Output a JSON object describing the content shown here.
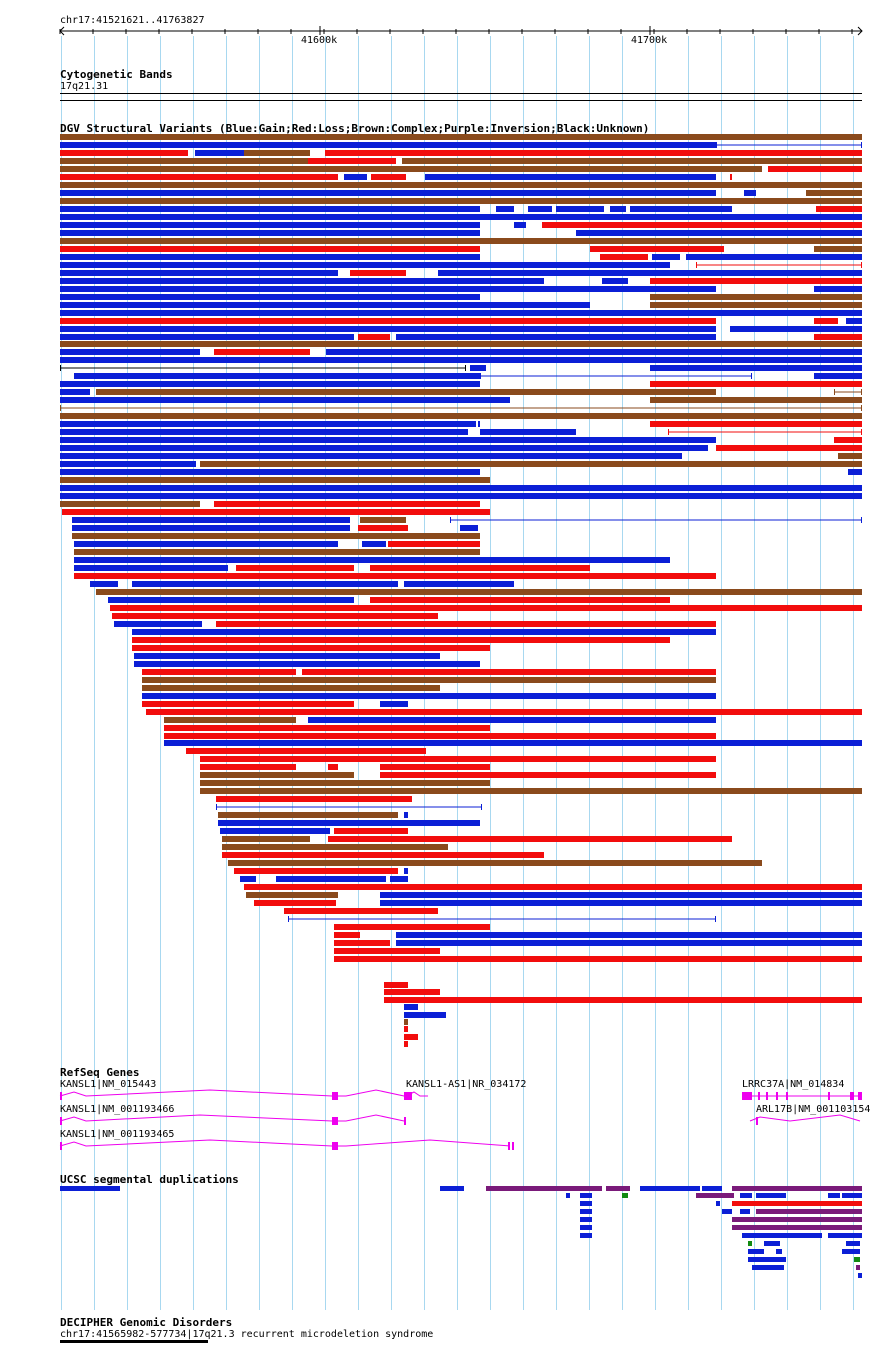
{
  "region": "chr17:41521621..41763827",
  "ruler": {
    "ticks": [
      "41600k",
      "41700k"
    ]
  },
  "colors": {
    "gain": "#0b1fd6",
    "loss": "#f20d0d",
    "complex": "#8a4a1c",
    "inversion": "#7a1a7a",
    "unknown": "#000000",
    "gene": "#ee00ee",
    "grid": "#a8d8f0",
    "green": "#128a12"
  },
  "tracks": {
    "cytoband": {
      "title": "Cytogenetic Bands",
      "band": "17q21.31"
    },
    "dgv": {
      "title": "DGV Structural Variants (Blue:Gain;Red:Loss;Brown:Complex;Purple:Inversion;Black:Unknown)",
      "variant_count": 108
    },
    "refseq": {
      "title": "RefSeq Genes",
      "genes": [
        {
          "label": "KANSL1|NM_015443"
        },
        {
          "label": "KANSL1-AS1|NR_034172"
        },
        {
          "label": "LRRC37A|NM_014834"
        },
        {
          "label": "KANSL1|NM_001193466"
        },
        {
          "label": "ARL17B|NM_001103154"
        },
        {
          "label": "KANSL1|NM_001193465"
        }
      ]
    },
    "segdup": {
      "title": "UCSC segmental duplications"
    },
    "decipher": {
      "title": "DECIPHER Genomic Disorders",
      "entry": "chr17:41565982-577734|17q21.3 recurrent microdeletion syndrome"
    }
  }
}
